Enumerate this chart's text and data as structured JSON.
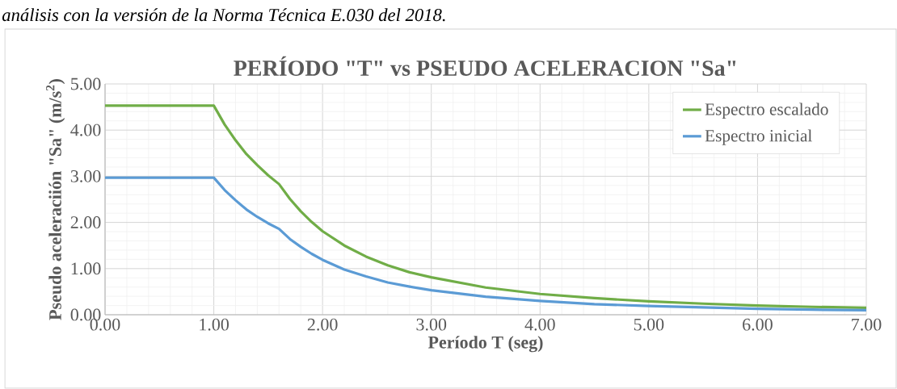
{
  "chart_data": {
    "type": "line",
    "title": "PERÍODO \"T\" vs PSEUDO ACELERACION \"Sa\"",
    "xlabel": "Período T (seg)",
    "ylabel": "Pseudo aceleraciión \"Sa\" (m/s$^{2}$)",
    "annotations": [
      "análisis con la versión de la Norma Técnica E.030 del 2018."
    ],
    "x": [
      0,
      0.5,
      1.0,
      1.1,
      1.2,
      1.3,
      1.4,
      1.5,
      1.6,
      1.7,
      1.8,
      1.9,
      2.0,
      2.2,
      2.4,
      2.6,
      2.8,
      3.0,
      3.5,
      4.0,
      4.5,
      5.0,
      5.5,
      6.0,
      6.5,
      7.0
    ],
    "series": [
      {
        "name": "Espectro escalado",
        "color": "#70ad47",
        "values": [
          4.53,
          4.53,
          4.53,
          4.12,
          3.78,
          3.48,
          3.24,
          3.02,
          2.83,
          2.51,
          2.24,
          2.01,
          1.81,
          1.5,
          1.26,
          1.07,
          0.92,
          0.81,
          0.59,
          0.45,
          0.36,
          0.29,
          0.24,
          0.2,
          0.17,
          0.15
        ]
      },
      {
        "name": "Espectro inicial",
        "color": "#5b9bd5",
        "values": [
          2.97,
          2.97,
          2.97,
          2.7,
          2.48,
          2.28,
          2.12,
          1.98,
          1.86,
          1.64,
          1.47,
          1.32,
          1.19,
          0.98,
          0.83,
          0.7,
          0.61,
          0.53,
          0.39,
          0.3,
          0.23,
          0.19,
          0.16,
          0.13,
          0.11,
          0.1
        ]
      }
    ],
    "xlim": [
      0,
      7
    ],
    "ylim": [
      0,
      5
    ],
    "xticks": [
      {
        "value": 0,
        "label": "0.00"
      },
      {
        "value": 1,
        "label": "1.00"
      },
      {
        "value": 2,
        "label": "2.00"
      },
      {
        "value": 3,
        "label": "3.00"
      },
      {
        "value": 4,
        "label": "4.00"
      },
      {
        "value": 5,
        "label": "5.00"
      },
      {
        "value": 6,
        "label": "6.00"
      },
      {
        "value": 7,
        "label": "7.00"
      }
    ],
    "yticks": [
      {
        "value": 0,
        "label": "0.00"
      },
      {
        "value": 1,
        "label": "1.00"
      },
      {
        "value": 2,
        "label": "2.00"
      },
      {
        "value": 3,
        "label": "3.00"
      },
      {
        "value": 4,
        "label": "4.00"
      },
      {
        "value": 5,
        "label": "5.00"
      }
    ],
    "grid": true,
    "legend": "top right",
    "marker": "none",
    "line_style": "solid"
  }
}
